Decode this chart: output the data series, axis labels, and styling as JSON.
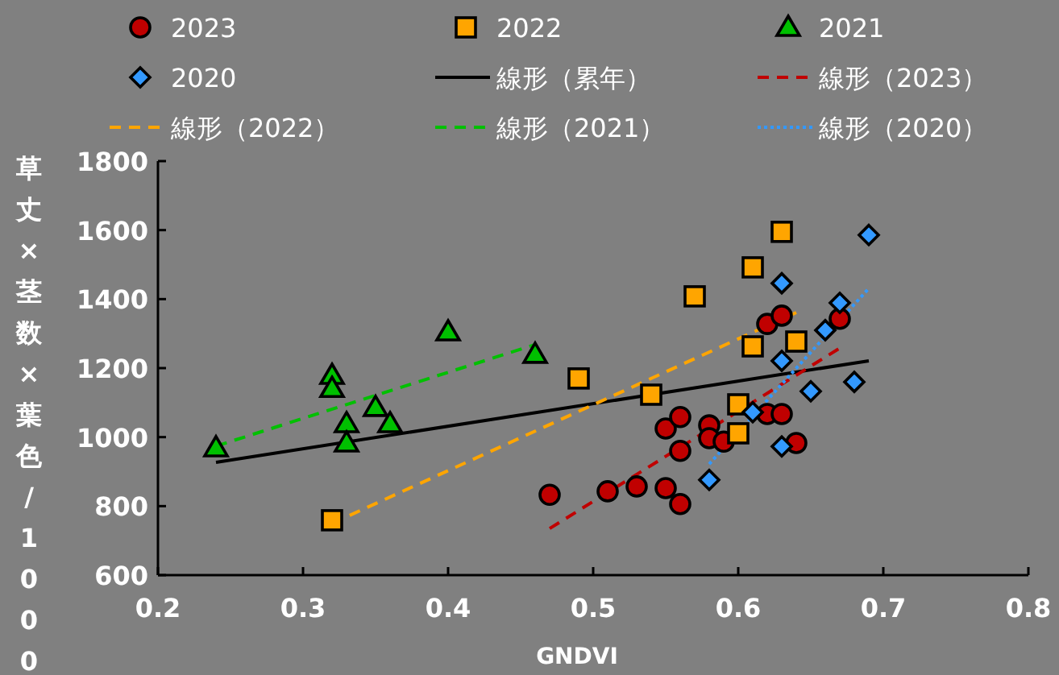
{
  "chart_data": {
    "type": "scatter",
    "xlabel": "GNDVI",
    "ylabel": "草丈×茎数×葉色/1000",
    "xlim": [
      0.2,
      0.8
    ],
    "ylim": [
      600,
      1800
    ],
    "xticks": [
      0.2,
      0.3,
      0.4,
      0.5,
      0.6,
      0.7,
      0.8
    ],
    "yticks": [
      600,
      800,
      1000,
      1200,
      1400,
      1600,
      1800
    ],
    "grid": false,
    "legend": "top",
    "series": [
      {
        "name": "2023",
        "marker": "circle",
        "color": "#c00000",
        "x": [
          0.47,
          0.51,
          0.53,
          0.55,
          0.56,
          0.55,
          0.56,
          0.56,
          0.58,
          0.58,
          0.59,
          0.62,
          0.63,
          0.64,
          0.62,
          0.63,
          0.67
        ],
        "values": [
          833,
          843,
          857,
          852,
          806,
          1025,
          1058,
          960,
          1034,
          997,
          987,
          1067,
          1067,
          983,
          1328,
          1352,
          1343
        ]
      },
      {
        "name": "2022",
        "marker": "square",
        "color": "#ffa500",
        "x": [
          0.32,
          0.49,
          0.54,
          0.57,
          0.6,
          0.6,
          0.61,
          0.61,
          0.63,
          0.64
        ],
        "values": [
          759,
          1170,
          1123,
          1408,
          1095,
          1011,
          1492,
          1263,
          1595,
          1277
        ]
      },
      {
        "name": "2021",
        "marker": "triangle",
        "color": "#00c000",
        "x": [
          0.24,
          0.32,
          0.32,
          0.33,
          0.33,
          0.35,
          0.36,
          0.4,
          0.46
        ],
        "values": [
          969,
          1179,
          1141,
          1039,
          983,
          1086,
          1039,
          1305,
          1240
        ]
      },
      {
        "name": "2020",
        "marker": "diamond",
        "color": "#3399ff",
        "x": [
          0.69,
          0.63,
          0.67,
          0.66,
          0.63,
          0.65,
          0.68,
          0.61,
          0.63,
          0.58
        ],
        "values": [
          1586,
          1446,
          1389,
          1310,
          1221,
          1133,
          1160,
          1072,
          973,
          876
        ]
      },
      {
        "name": "線形（累年）",
        "type": "line",
        "line_style": "solid",
        "color": "#000000",
        "x": [
          0.24,
          0.69
        ],
        "values": [
          927,
          1221
        ]
      },
      {
        "name": "線形（2023）",
        "type": "line",
        "line_style": "dashed",
        "color": "#c00000",
        "x": [
          0.47,
          0.67
        ],
        "values": [
          735,
          1258
        ]
      },
      {
        "name": "線形（2022）",
        "type": "line",
        "line_style": "dashed",
        "color": "#ffa500",
        "x": [
          0.32,
          0.64
        ],
        "values": [
          750,
          1361
        ]
      },
      {
        "name": "線形（2021）",
        "type": "line",
        "line_style": "dashed",
        "color": "#00c000",
        "x": [
          0.24,
          0.46
        ],
        "values": [
          974,
          1268
        ]
      },
      {
        "name": "線形（2020）",
        "type": "line",
        "line_style": "dotted",
        "color": "#3399ff",
        "x": [
          0.58,
          0.69
        ],
        "values": [
          922,
          1431
        ]
      }
    ]
  }
}
